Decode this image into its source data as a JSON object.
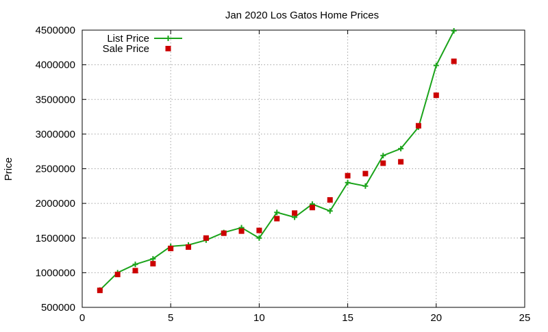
{
  "chart_data": {
    "type": "line",
    "title": "Jan 2020 Los Gatos Home Prices",
    "xlabel": "",
    "ylabel": "Price",
    "xlim": [
      0,
      25
    ],
    "ylim": [
      500000,
      4500000
    ],
    "x_ticks": [
      0,
      5,
      10,
      15,
      20,
      25
    ],
    "y_ticks": [
      500000,
      1000000,
      1500000,
      2000000,
      2500000,
      3000000,
      3500000,
      4000000,
      4500000
    ],
    "x_tick_labels": [
      "0",
      "5",
      "10",
      "15",
      "20",
      "25"
    ],
    "y_tick_labels": [
      "500000",
      "1000000",
      "1500000",
      "2000000",
      "2500000",
      "3000000",
      "3500000",
      "4000000",
      "4500000"
    ],
    "grid": true,
    "legend_position": "top-left",
    "series": [
      {
        "name": "List Price",
        "style": "line-with-plus-markers",
        "color": "#1aa31a",
        "x": [
          1,
          2,
          3,
          4,
          5,
          6,
          7,
          8,
          9,
          10,
          11,
          12,
          13,
          14,
          15,
          16,
          17,
          18,
          19,
          20,
          21
        ],
        "y": [
          750000,
          1000000,
          1120000,
          1200000,
          1380000,
          1400000,
          1470000,
          1580000,
          1650000,
          1500000,
          1870000,
          1800000,
          1990000,
          1890000,
          2300000,
          2250000,
          2690000,
          2790000,
          3100000,
          3990000,
          4490000
        ]
      },
      {
        "name": "Sale Price",
        "style": "square-markers",
        "color": "#cc0000",
        "x": [
          1,
          2,
          3,
          4,
          5,
          6,
          7,
          8,
          9,
          10,
          11,
          12,
          13,
          14,
          15,
          16,
          17,
          18,
          19,
          20,
          21
        ],
        "y": [
          745000,
          975000,
          1030000,
          1130000,
          1350000,
          1370000,
          1500000,
          1570000,
          1600000,
          1610000,
          1780000,
          1860000,
          1940000,
          2050000,
          2400000,
          2430000,
          2580000,
          2600000,
          3120000,
          3560000,
          4050000
        ]
      }
    ]
  }
}
